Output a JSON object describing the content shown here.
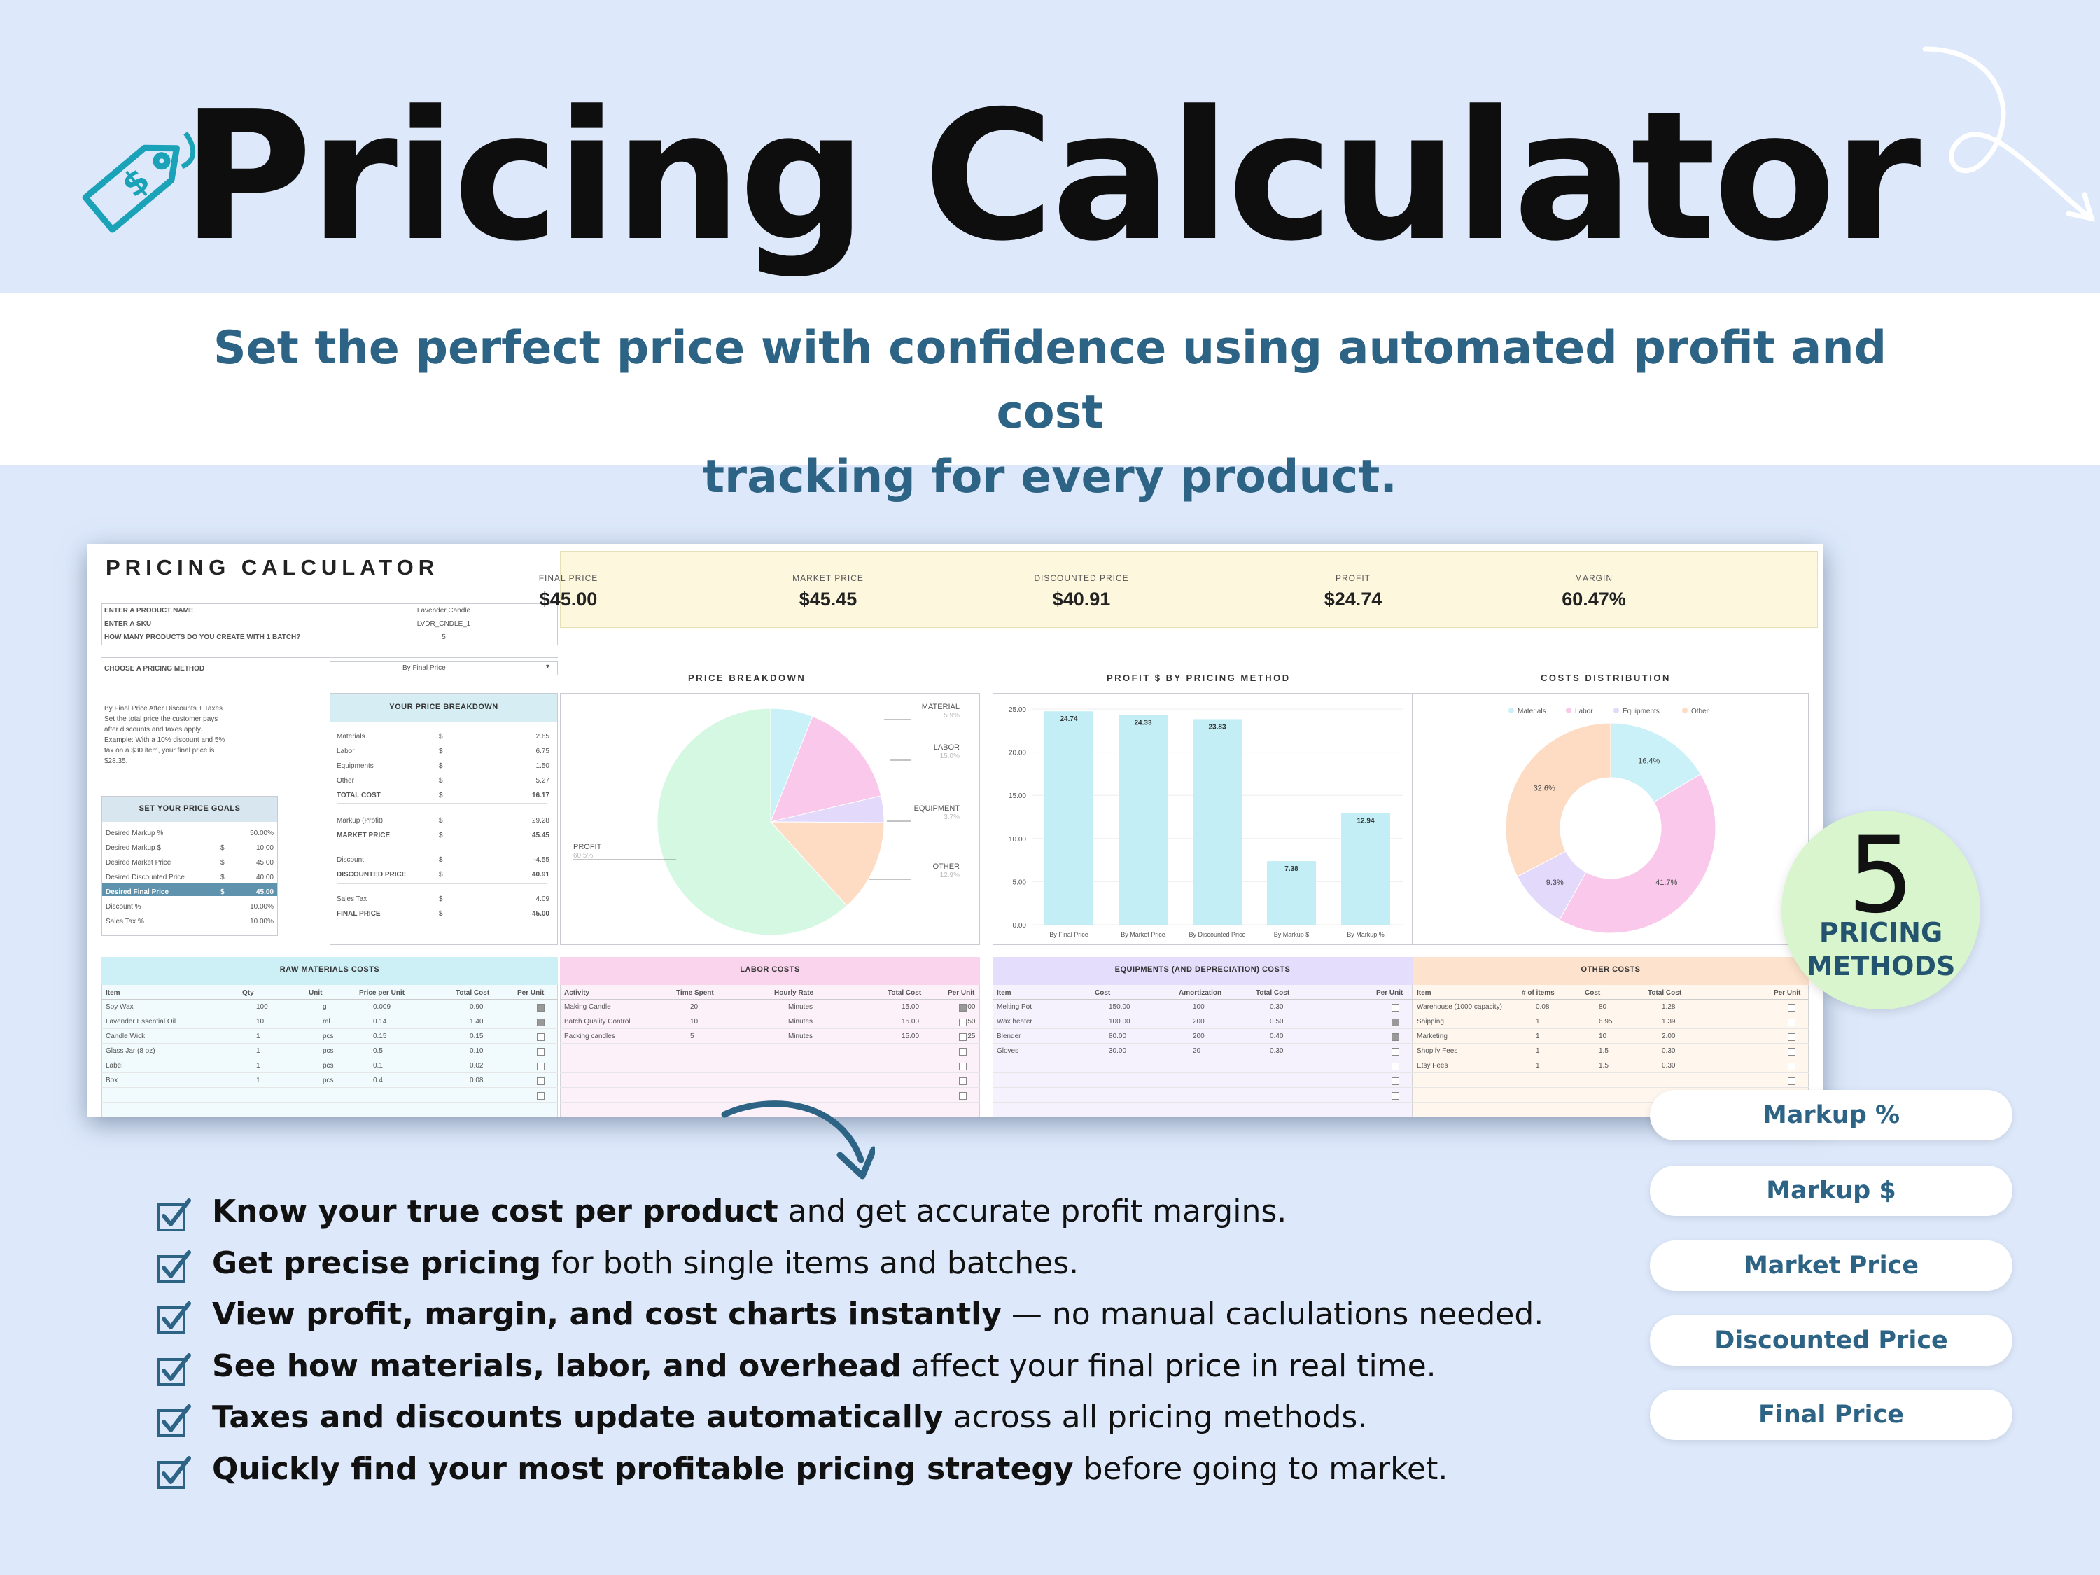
{
  "header": {
    "title": "Pricing Calculator",
    "subtitle_line1": "Set the perfect price with confidence using automated profit and cost",
    "subtitle_line2": "tracking for every product."
  },
  "colors": {
    "accent": "#2d6384",
    "teal": "#1aa2b8",
    "band": "#ffffff",
    "bg": "#dde9fb",
    "badge": "#d8f5cd"
  },
  "sheet": {
    "title": "PRICING CALCULATOR",
    "inputs": [
      {
        "label": "ENTER A PRODUCT NAME",
        "value": "Lavender Candle"
      },
      {
        "label": "ENTER A SKU",
        "value": "LVDR_CNDLE_1"
      },
      {
        "label": "HOW MANY PRODUCTS DO YOU CREATE WITH 1 BATCH?",
        "value": "5"
      }
    ],
    "method": {
      "label": "CHOOSE A PRICING METHOD",
      "value": "By Final Price"
    },
    "method_desc": [
      "By Final Price After Discounts + Taxes",
      "Set the total price the customer pays",
      "after discounts and taxes apply.",
      "Example: With a 10% discount and 5%",
      "tax on a $30 item, your final price is",
      "$28.35."
    ],
    "goals": {
      "title": "SET YOUR PRICE GOALS",
      "rows": [
        {
          "label": "Desired Markup %",
          "cur": "",
          "val": "50.00%"
        },
        {
          "label": "Desired Markup $",
          "cur": "$",
          "val": "10.00"
        },
        {
          "label": "Desired Market Price",
          "cur": "$",
          "val": "45.00"
        },
        {
          "label": "Desired Discounted Price",
          "cur": "$",
          "val": "40.00"
        },
        {
          "label": "Desired Final Price",
          "cur": "$",
          "val": "45.00"
        },
        {
          "label": "Discount %",
          "cur": "",
          "val": "10.00%"
        },
        {
          "label": "Sales Tax %",
          "cur": "",
          "val": "10.00%"
        }
      ]
    },
    "breakdown": {
      "title": "YOUR PRICE BREAKDOWN",
      "rows": [
        {
          "label": "Materials",
          "cur": "$",
          "val": "2.65"
        },
        {
          "label": "Labor",
          "cur": "$",
          "val": "6.75"
        },
        {
          "label": "Equipments",
          "cur": "$",
          "val": "1.50"
        },
        {
          "label": "Other",
          "cur": "$",
          "val": "5.27"
        },
        {
          "label": "TOTAL COST",
          "cur": "$",
          "val": "16.17"
        },
        {
          "label": "Markup (Profit)",
          "cur": "$",
          "val": "29.28"
        },
        {
          "label": "MARKET PRICE",
          "cur": "$",
          "val": "45.45"
        },
        {
          "label": "Discount",
          "cur": "$",
          "val": "-4.55"
        },
        {
          "label": "DISCOUNTED PRICE",
          "cur": "$",
          "val": "40.91"
        },
        {
          "label": "Sales Tax",
          "cur": "$",
          "val": "4.09"
        },
        {
          "label": "FINAL PRICE",
          "cur": "$",
          "val": "45.00"
        }
      ]
    },
    "kpis": [
      {
        "label": "FINAL PRICE",
        "value": "$45.00"
      },
      {
        "label": "MARKET PRICE",
        "value": "$45.45"
      },
      {
        "label": "DISCOUNTED PRICE",
        "value": "$40.91"
      },
      {
        "label": "PROFIT",
        "value": "$24.74"
      },
      {
        "label": "MARGIN",
        "value": "60.47%"
      }
    ],
    "raw": {
      "title": "RAW MATERIALS COSTS",
      "cols": [
        "Item",
        "Qty",
        "Unit",
        "Price per Unit",
        "Total Cost",
        "Per Unit"
      ],
      "rows": [
        [
          "Soy Wax",
          "100",
          "g",
          "0.009",
          "0.90",
          true
        ],
        [
          "Lavender Essential Oil",
          "10",
          "ml",
          "0.14",
          "1.40",
          true
        ],
        [
          "Candle Wick",
          "1",
          "pcs",
          "0.15",
          "0.15",
          false
        ],
        [
          "Glass Jar (8 oz)",
          "1",
          "pcs",
          "0.5",
          "0.10",
          false
        ],
        [
          "Label",
          "1",
          "pcs",
          "0.1",
          "0.02",
          false
        ],
        [
          "Box",
          "1",
          "pcs",
          "0.4",
          "0.08",
          false
        ]
      ]
    },
    "labor": {
      "title": "LABOR COSTS",
      "cols": [
        "Activity",
        "Time Spent",
        "Hourly Rate",
        "Total Cost",
        "Per Unit"
      ],
      "rows": [
        [
          "Making Candle",
          "20",
          "Minutes",
          "15.00",
          "5.00",
          true
        ],
        [
          "Batch Quality Control",
          "10",
          "Minutes",
          "15.00",
          "0.50",
          false
        ],
        [
          "Packing candles",
          "5",
          "Minutes",
          "15.00",
          "1.25",
          false
        ]
      ]
    },
    "equip": {
      "title": "EQUIPMENTS (AND DEPRECIATION) COSTS",
      "cols": [
        "Item",
        "Cost",
        "Amortization",
        "Total Cost",
        "Per Unit"
      ],
      "rows": [
        [
          "Melting Pot",
          "150.00",
          "100",
          "0.30",
          false
        ],
        [
          "Wax heater",
          "100.00",
          "200",
          "0.50",
          true
        ],
        [
          "Blender",
          "80.00",
          "200",
          "0.40",
          true
        ],
        [
          "Gloves",
          "30.00",
          "20",
          "0.30",
          false
        ]
      ]
    },
    "other": {
      "title": "OTHER COSTS",
      "cols": [
        "Item",
        "# of items",
        "Cost",
        "Total Cost",
        "Per Unit"
      ],
      "rows": [
        [
          "Warehouse (1000 capacity)",
          "0.08",
          "80",
          "1.28",
          false
        ],
        [
          "Shipping",
          "1",
          "6.95",
          "1.39",
          false
        ],
        [
          "Marketing",
          "1",
          "10",
          "2.00",
          false
        ],
        [
          "Shopify Fees",
          "1",
          "1.5",
          "0.30",
          false
        ],
        [
          "Etsy Fees",
          "1",
          "1.5",
          "0.30",
          false
        ]
      ]
    }
  },
  "chart_data": [
    {
      "type": "pie",
      "title": "PRICE BREAKDOWN",
      "slices": [
        {
          "name": "MATERIAL",
          "value": 5.9
        },
        {
          "name": "LABOR",
          "value": 15.0
        },
        {
          "name": "EQUIPMENT",
          "value": 3.7
        },
        {
          "name": "OTHER",
          "value": 12.9
        },
        {
          "name": "PROFIT",
          "value": 60.5
        }
      ],
      "labels": [
        "MATERIAL",
        "5.9%",
        "LABOR",
        "15.0%",
        "EQUIPMENT",
        "3.7%",
        "OTHER",
        "12.9%",
        "PROFIT",
        "60.5%"
      ],
      "colors": [
        "#c9f1f7",
        "#f9c8ea",
        "#e3d9fb",
        "#fedcc4",
        "#d5f8e2"
      ]
    },
    {
      "type": "bar",
      "title": "PROFIT $ BY PRICING METHOD",
      "categories": [
        "By Final Price",
        "By Market Price",
        "By Discounted Price",
        "By Markup $",
        "By Markup %"
      ],
      "values": [
        24.74,
        24.33,
        23.83,
        7.38,
        12.94
      ],
      "value_labels": [
        "24.74",
        "24.33",
        "23.83",
        "7.38",
        "12.94"
      ],
      "ylim": [
        0,
        25
      ],
      "yticks": [
        "25.00",
        "20.00",
        "15.00",
        "10.00",
        "5.00",
        "0.00"
      ],
      "color": "#c3eef5"
    },
    {
      "type": "pie",
      "title": "COSTS DISTRIBUTION",
      "legend": [
        "Materials",
        "Labor",
        "Equipments",
        "Other"
      ],
      "slices": [
        {
          "name": "Materials",
          "value": 16.4
        },
        {
          "name": "Labor",
          "value": 41.7
        },
        {
          "name": "Equipments",
          "value": 9.3
        },
        {
          "name": "Other",
          "value": 32.6
        }
      ],
      "value_labels": [
        "16.4%",
        "41.7%",
        "9.3%",
        "32.6%"
      ],
      "colors": [
        "#c9f1f7",
        "#f9c8ea",
        "#e3d9fb",
        "#fedcc4"
      ]
    }
  ],
  "features": [
    {
      "bold": "Know your true cost per product",
      "rest": " and get accurate profit margins."
    },
    {
      "bold": "Get precise pricing",
      "rest": " for both single items and batches."
    },
    {
      "bold": "View profit, margin, and cost charts instantly",
      "rest": " — no manual caclulations needed."
    },
    {
      "bold": "See how materials, labor, and overhead",
      "rest": " affect your final price in real time."
    },
    {
      "bold": "Taxes and discounts update automatically",
      "rest": " across all pricing methods."
    },
    {
      "bold": "Quickly find your most profitable pricing strategy",
      "rest": " before going to market."
    }
  ],
  "badge": {
    "number": "5",
    "line1": "PRICING",
    "line2": "METHODS"
  },
  "methods": [
    "Markup %",
    "Markup $",
    "Market Price",
    "Discounted Price",
    "Final Price"
  ],
  "icons": {
    "tag": "price-tag-icon",
    "arrow": "curved-arrow-icon",
    "check": "checkbox-checked-icon"
  }
}
